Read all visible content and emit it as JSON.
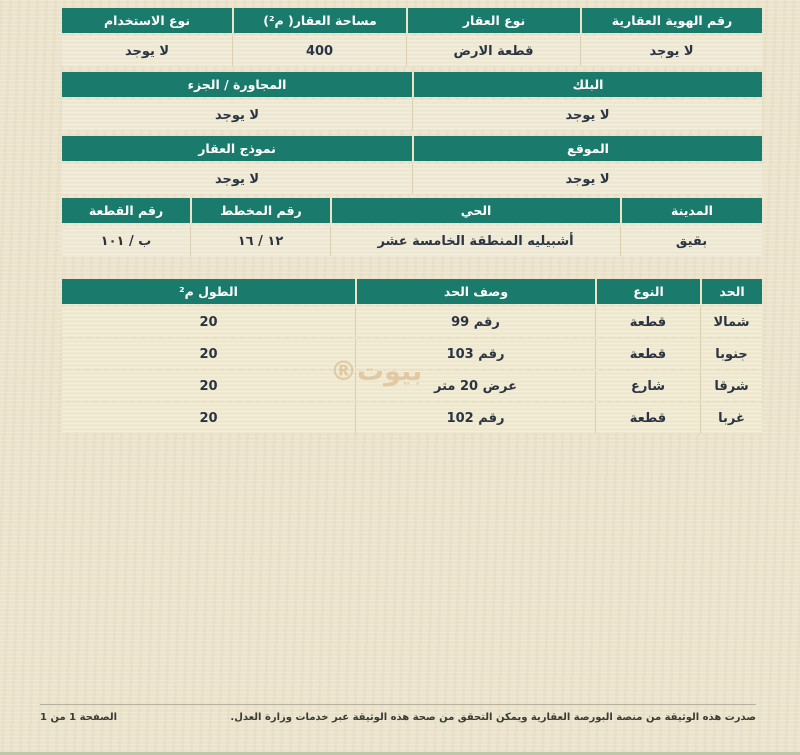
{
  "page": {
    "bg_color": "#ebe3ca",
    "accent_color": "#1a7a6c",
    "watermark_text": "بيوت®"
  },
  "property_tables": [
    {
      "name": "identity",
      "columns": [
        {
          "header": "رقم الهوية العقارية",
          "value": "لا يوجد"
        },
        {
          "header": "نوع العقار",
          "value": "قطعة الارض"
        },
        {
          "header": "مساحة العقار( م²)",
          "value": "400"
        },
        {
          "header": "نوع الاستخدام",
          "value": "لا يوجد"
        }
      ]
    },
    {
      "name": "block",
      "columns": [
        {
          "header": "البلك",
          "value": "لا يوجد"
        },
        {
          "header": "المجاورة / الجزء",
          "value": "لا يوجد"
        }
      ]
    },
    {
      "name": "location",
      "columns": [
        {
          "header": "الموقع",
          "value": "لا يوجد"
        },
        {
          "header": "نموذج العقار",
          "value": "لا يوجد"
        }
      ]
    },
    {
      "name": "city-plan",
      "columns": [
        {
          "header": "المدينة",
          "value": "بقيق"
        },
        {
          "header": "الحي",
          "value": "أشبيليه المنطقة الخامسة عشر"
        },
        {
          "header": "رقم المخطط",
          "value": "١٢ / ١٦"
        },
        {
          "header": "رقم القطعة",
          "value": "ب / ١٠١"
        }
      ]
    }
  ],
  "boundaries_table": {
    "headers": [
      "الحد",
      "النوع",
      "وصف الحد",
      "الطول م²"
    ],
    "rows": [
      [
        "شمالا",
        "قطعة",
        "رقم 99",
        "20"
      ],
      [
        "جنوبا",
        "قطعة",
        "رقم 103",
        "20"
      ],
      [
        "شرقا",
        "شارع",
        "عرض 20 متر",
        "20"
      ],
      [
        "غربا",
        "قطعة",
        "رقم 102",
        "20"
      ]
    ]
  },
  "footer": {
    "issuance_note": "صدرت هذه الوثيقة من منصة البورصة العقارية ويمكن التحقق من صحة هذه الوثيقة عبر خدمات وزارة العدل.",
    "page_indicator": "الصفحة 1 من 1"
  }
}
